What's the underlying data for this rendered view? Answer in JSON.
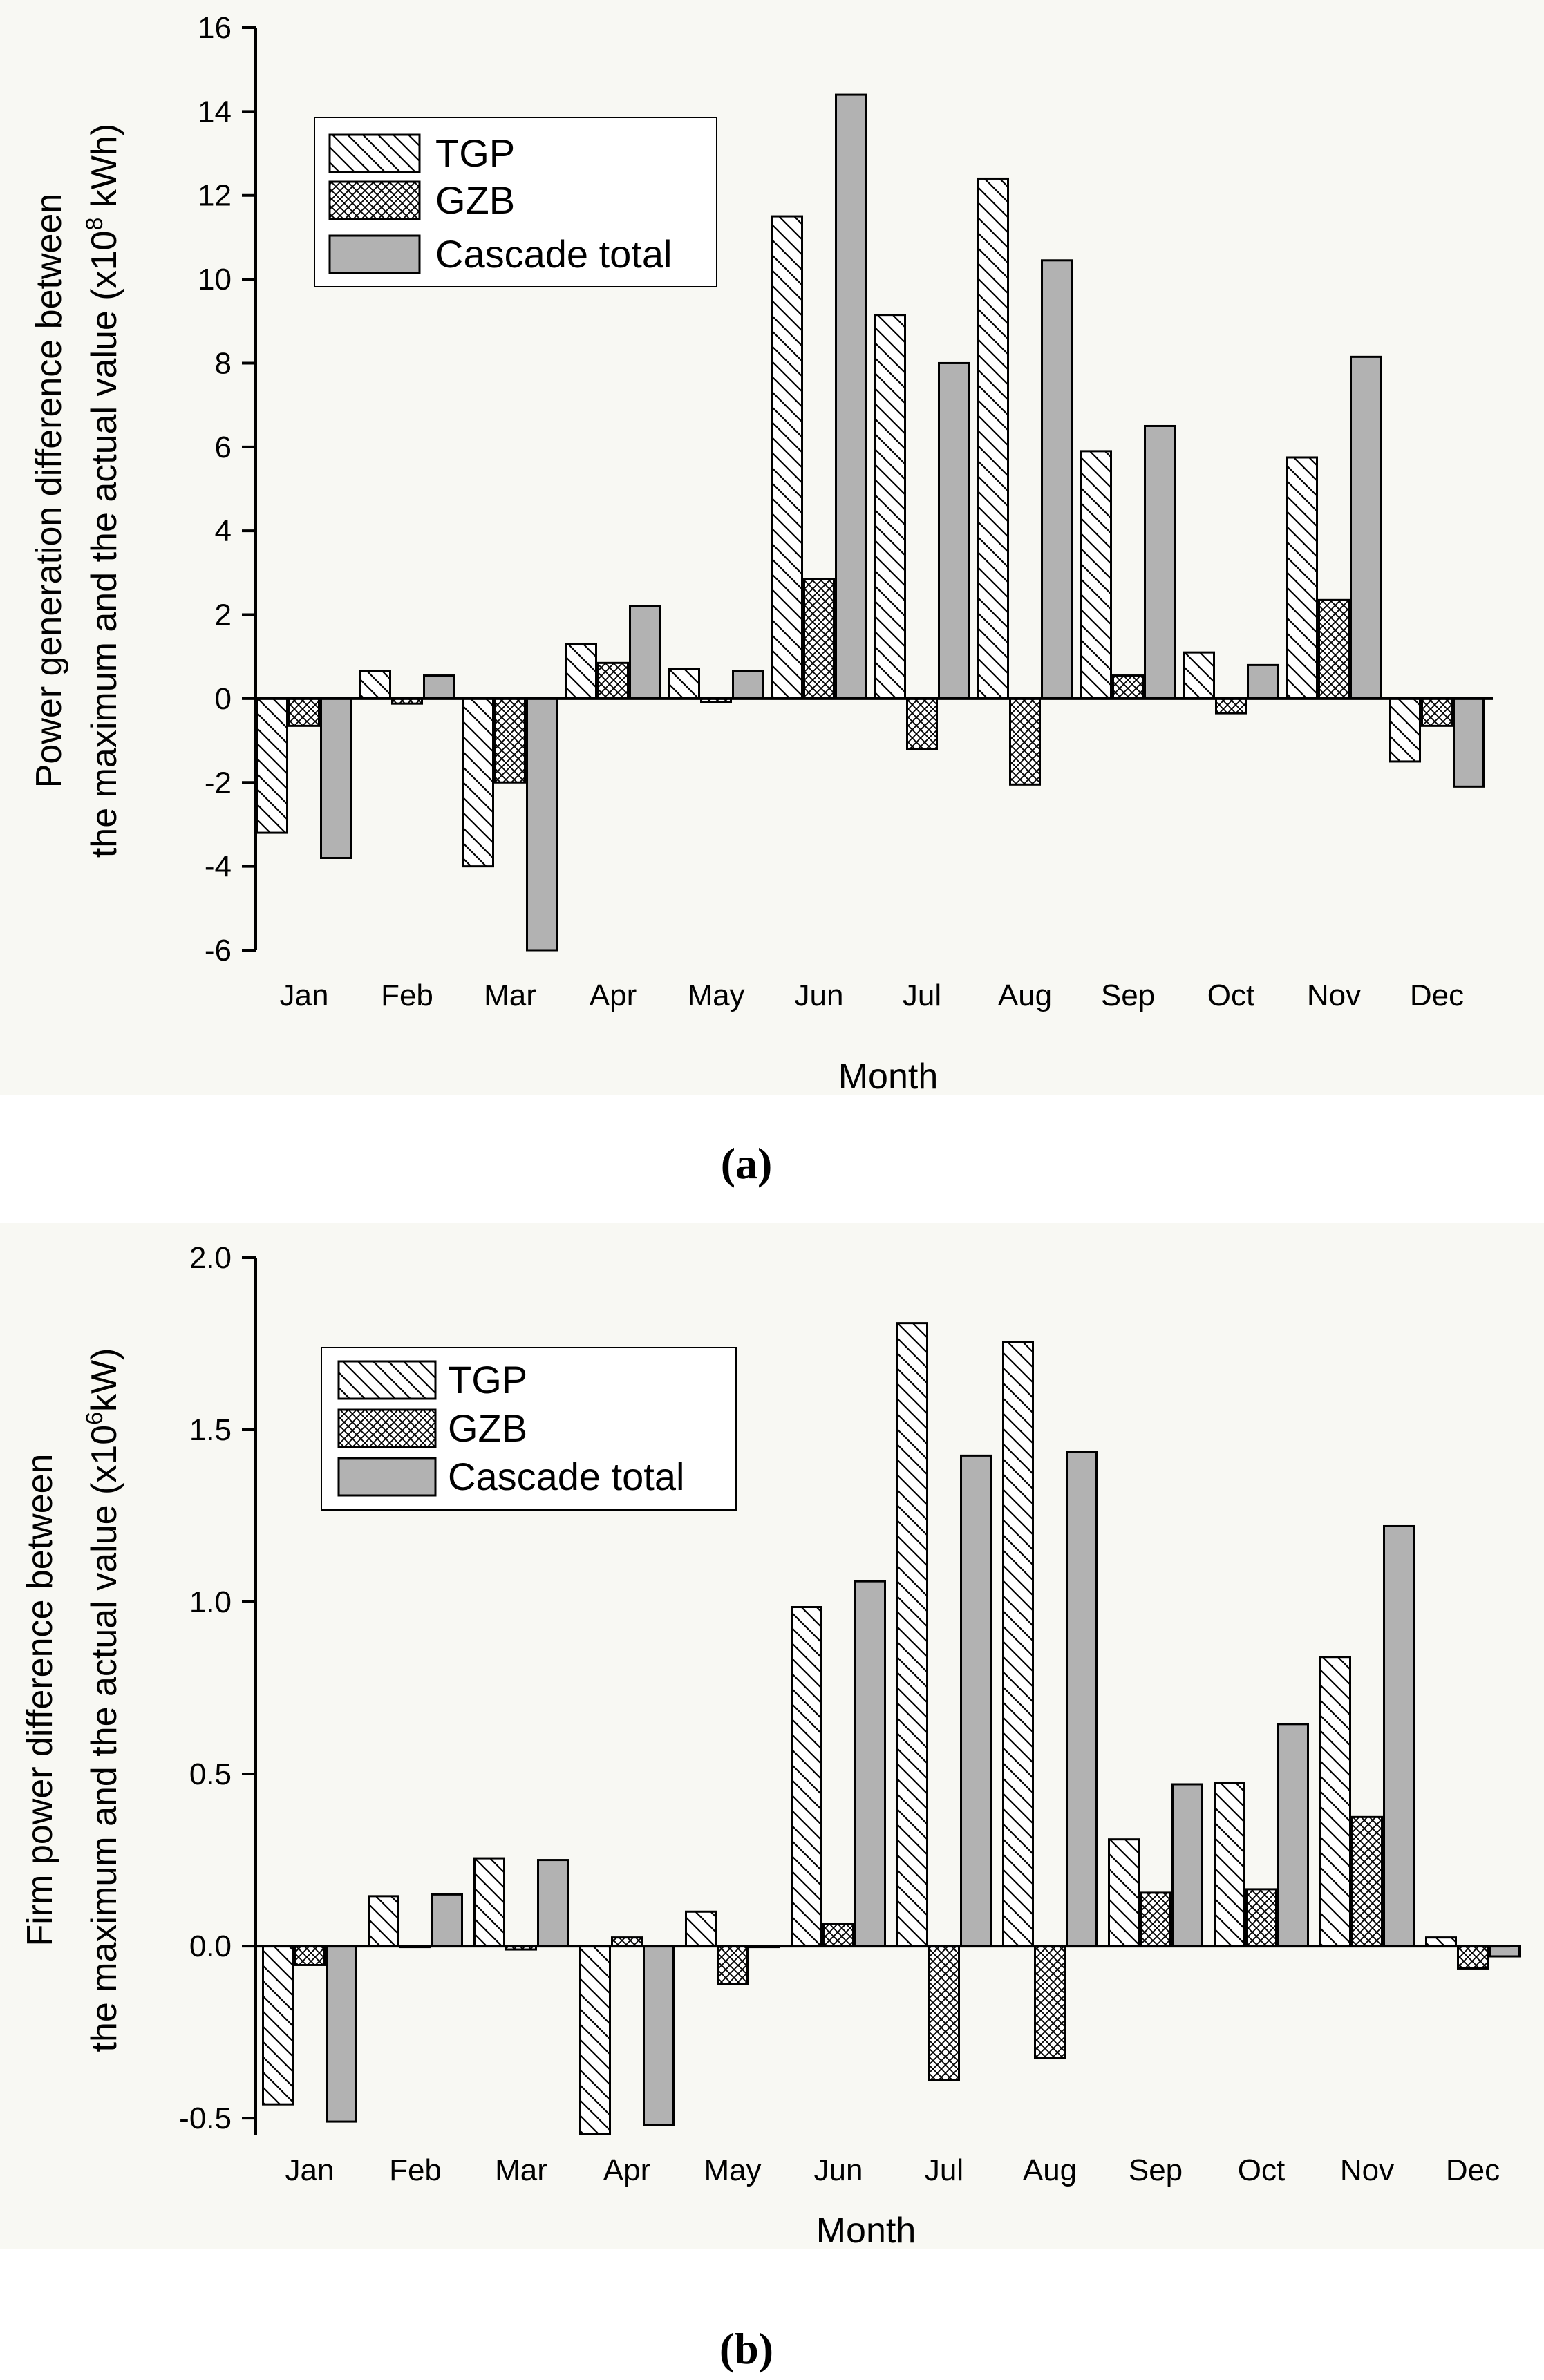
{
  "chart_data": [
    {
      "id": "a",
      "type": "bar",
      "panel_label": "(a)",
      "xlabel": "Month",
      "ylabel_line1": "Power generation difference between",
      "ylabel_line2_pre": "the maximum and the actual value (x10",
      "ylabel_exp": "8",
      "ylabel_line2_post": " kWh)",
      "ylim": [
        -6,
        16
      ],
      "yticks": [
        -6,
        -4,
        -2,
        0,
        2,
        4,
        6,
        8,
        10,
        12,
        14,
        16
      ],
      "ytick_labels": [
        "-6",
        "-4",
        "-2",
        "0",
        "2",
        "4",
        "6",
        "8",
        "10",
        "12",
        "14",
        "16"
      ],
      "categories": [
        "Jan",
        "Feb",
        "Mar",
        "Apr",
        "May",
        "Jun",
        "Jul",
        "Aug",
        "Sep",
        "Oct",
        "Nov",
        "Dec"
      ],
      "series": [
        {
          "name": "TGP",
          "values": [
            -3.2,
            0.65,
            -4.0,
            1.3,
            0.7,
            11.5,
            9.15,
            12.4,
            5.9,
            1.1,
            5.75,
            -1.5
          ]
        },
        {
          "name": "GZB",
          "values": [
            -0.65,
            -0.12,
            -2.0,
            0.85,
            -0.08,
            2.85,
            -1.2,
            -2.05,
            0.55,
            -0.35,
            2.35,
            -0.65
          ]
        },
        {
          "name": "Cascade total",
          "values": [
            -3.8,
            0.55,
            -6.0,
            2.2,
            0.65,
            14.4,
            8.0,
            10.45,
            6.5,
            0.8,
            8.15,
            -2.1
          ]
        }
      ],
      "legend": {
        "position": "top-left",
        "entries": [
          "TGP",
          "GZB",
          "Cascade total"
        ]
      }
    },
    {
      "id": "b",
      "type": "bar",
      "panel_label": "(b)",
      "xlabel": "Month",
      "ylabel_line1": "Firm power difference between",
      "ylabel_line2_pre": "the maximum and the actual value (x10",
      "ylabel_exp": "6",
      "ylabel_line2_post": "kW)",
      "ylim": [
        -0.55,
        2.0
      ],
      "yticks": [
        -0.5,
        0.0,
        0.5,
        1.0,
        1.5,
        2.0
      ],
      "ytick_labels": [
        "-0.5",
        "0.0",
        "0.5",
        "1.0",
        "1.5",
        "2.0"
      ],
      "categories": [
        "Jan",
        "Feb",
        "Mar",
        "Apr",
        "May",
        "Jun",
        "Jul",
        "Aug",
        "Sep",
        "Oct",
        "Nov",
        "Dec"
      ],
      "series": [
        {
          "name": "TGP",
          "values": [
            -0.46,
            0.145,
            0.255,
            -0.545,
            0.1,
            0.985,
            1.81,
            1.755,
            0.31,
            0.475,
            0.84,
            0.025
          ]
        },
        {
          "name": "GZB",
          "values": [
            -0.055,
            0.0,
            -0.01,
            0.025,
            -0.11,
            0.065,
            -0.39,
            -0.325,
            0.155,
            0.165,
            0.375,
            -0.065
          ]
        },
        {
          "name": "Cascade total",
          "values": [
            -0.51,
            0.15,
            0.25,
            -0.52,
            0.0,
            1.06,
            1.425,
            1.435,
            0.47,
            0.645,
            1.22,
            -0.03
          ]
        }
      ],
      "legend": {
        "position": "top-left",
        "entries": [
          "TGP",
          "GZB",
          "Cascade total"
        ]
      }
    }
  ]
}
